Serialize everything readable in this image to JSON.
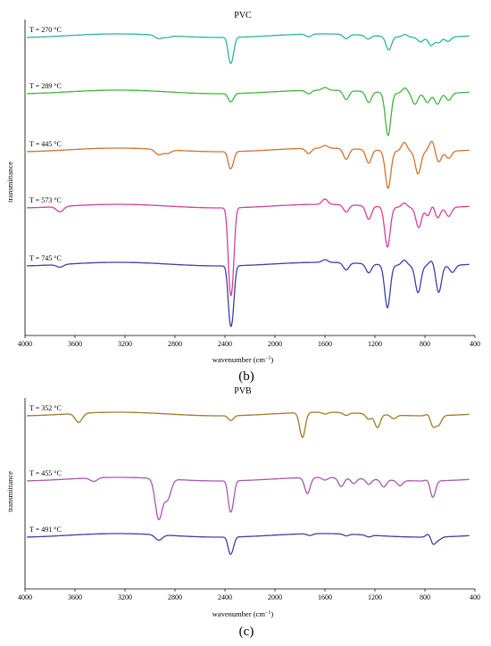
{
  "chart_data": [
    {
      "type": "line",
      "panel_label": "(b)",
      "title": "PVC",
      "xlabel": "wavenumber (cm",
      "xlabel_sup": "−1",
      "xlabel_close": ")",
      "ylabel": "transmittance",
      "xlim": [
        4000,
        400
      ],
      "x_ticks": [
        "4000",
        "3600",
        "3200",
        "2800",
        "2400",
        "2000",
        "1600",
        "1200",
        "800",
        "400"
      ],
      "series": [
        {
          "name": "T = 270 °C",
          "color": "#2bb5a0",
          "features": [
            [
              2930,
              -4
            ],
            [
              2860,
              -2
            ],
            [
              2362,
              -22
            ],
            [
              2338,
              -16
            ],
            [
              1730,
              -3
            ],
            [
              1430,
              -5
            ],
            [
              1255,
              -4
            ],
            [
              1090,
              -15
            ],
            [
              960,
              3
            ],
            [
              835,
              -5
            ],
            [
              750,
              -9
            ],
            [
              690,
              -6
            ],
            [
              615,
              -5
            ]
          ]
        },
        {
          "name": "T = 289 °C",
          "color": "#44b53c",
          "features": [
            [
              2362,
              -7
            ],
            [
              2338,
              -5
            ],
            [
              1730,
              -4
            ],
            [
              1600,
              3
            ],
            [
              1430,
              -10
            ],
            [
              1250,
              -12
            ],
            [
              1095,
              -48
            ],
            [
              960,
              6
            ],
            [
              880,
              -12
            ],
            [
              780,
              -10
            ],
            [
              700,
              -12
            ],
            [
              610,
              -8
            ]
          ]
        },
        {
          "name": "T = 445 °C",
          "color": "#d2732f",
          "features": [
            [
              2930,
              -6
            ],
            [
              2860,
              -4
            ],
            [
              2362,
              -15
            ],
            [
              2338,
              -10
            ],
            [
              1730,
              -6
            ],
            [
              1600,
              3
            ],
            [
              1430,
              -12
            ],
            [
              1250,
              -15
            ],
            [
              1095,
              -42
            ],
            [
              965,
              10
            ],
            [
              855,
              -25
            ],
            [
              745,
              12
            ],
            [
              690,
              -12
            ],
            [
              610,
              -8
            ]
          ]
        },
        {
          "name": "T = 573 °C",
          "color": "#d63f9c",
          "features": [
            [
              3720,
              -6
            ],
            [
              2362,
              -70
            ],
            [
              2338,
              -60
            ],
            [
              1600,
              6
            ],
            [
              1430,
              -8
            ],
            [
              1250,
              -15
            ],
            [
              1100,
              -45
            ],
            [
              965,
              5
            ],
            [
              850,
              -22
            ],
            [
              770,
              -12
            ],
            [
              745,
              8
            ],
            [
              700,
              -12
            ],
            [
              610,
              -10
            ]
          ]
        },
        {
          "name": "T = 745 °C",
          "color": "#3f3fae",
          "features": [
            [
              3720,
              -3
            ],
            [
              2362,
              -48
            ],
            [
              2338,
              -42
            ],
            [
              1600,
              3
            ],
            [
              1430,
              -8
            ],
            [
              1250,
              -10
            ],
            [
              1100,
              -48
            ],
            [
              965,
              6
            ],
            [
              855,
              -30
            ],
            [
              745,
              6
            ],
            [
              690,
              -30
            ],
            [
              580,
              -8
            ]
          ]
        }
      ]
    },
    {
      "type": "line",
      "panel_label": "(c)",
      "title": "PVB",
      "xlabel": "wavenumber (cm",
      "xlabel_sup": "−1",
      "xlabel_close": ")",
      "ylabel": "transmittance",
      "xlim": [
        4000,
        400
      ],
      "x_ticks": [
        "4000",
        "3600",
        "3200",
        "2800",
        "2400",
        "2000",
        "1600",
        "1200",
        "800",
        "400"
      ],
      "series": [
        {
          "name": "T = 352 °C",
          "color": "#a07a2a",
          "features": [
            [
              3570,
              -10
            ],
            [
              2362,
              -4
            ],
            [
              2338,
              -3
            ],
            [
              1780,
              -28
            ],
            [
              1600,
              -2
            ],
            [
              1430,
              -3
            ],
            [
              1250,
              -6
            ],
            [
              1180,
              -15
            ],
            [
              1050,
              -4
            ],
            [
              760,
              6
            ],
            [
              740,
              -15
            ],
            [
              690,
              -10
            ]
          ]
        },
        {
          "name": "T = 455 °C",
          "color": "#a858b0",
          "features": [
            [
              3450,
              -4
            ],
            [
              2930,
              -45
            ],
            [
              2860,
              -22
            ],
            [
              2362,
              -26
            ],
            [
              2338,
              -20
            ],
            [
              1740,
              -18
            ],
            [
              1600,
              -3
            ],
            [
              1470,
              -10
            ],
            [
              1370,
              -6
            ],
            [
              1250,
              -6
            ],
            [
              1130,
              -8
            ],
            [
              1000,
              -6
            ],
            [
              760,
              6
            ],
            [
              740,
              -22
            ]
          ]
        },
        {
          "name": "T = 491 °C",
          "color": "#3f3fae",
          "features": [
            [
              2930,
              -6
            ],
            [
              2362,
              -15
            ],
            [
              2338,
              -10
            ],
            [
              1720,
              -2
            ],
            [
              1430,
              -2
            ],
            [
              1250,
              -2
            ],
            [
              760,
              8
            ],
            [
              740,
              -12
            ],
            [
              690,
              -3
            ]
          ]
        }
      ]
    }
  ]
}
